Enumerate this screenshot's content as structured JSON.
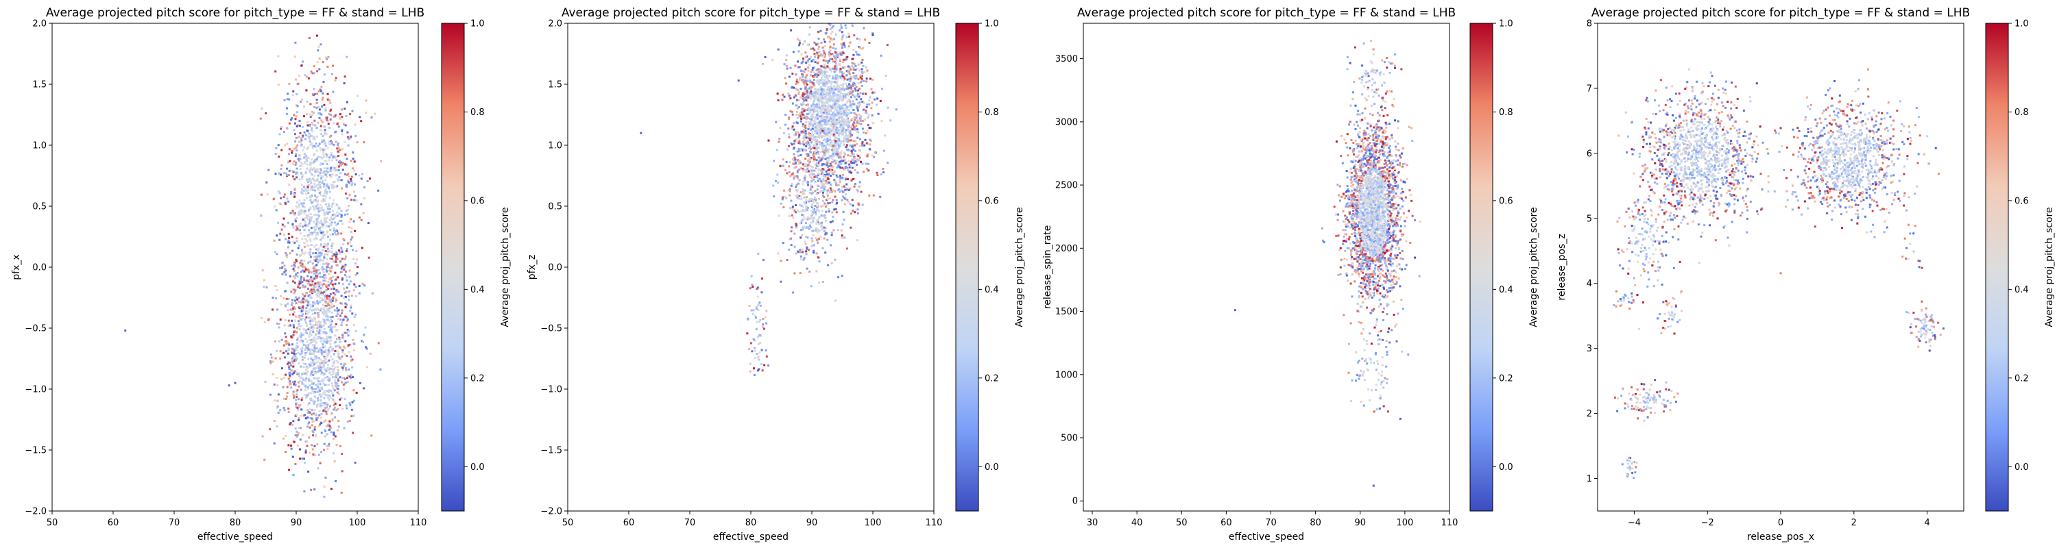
{
  "colormap": {
    "name": "coolwarm",
    "stops": [
      "#3b4cc0",
      "#7b9ff9",
      "#c0d4f5",
      "#dddddd",
      "#f2cbb7",
      "#ee8468",
      "#b40426"
    ]
  },
  "chart_data": [
    {
      "type": "scatter",
      "title": "Average projected pitch score for pitch_type = FF & stand = LHB",
      "xlabel": "effective_speed",
      "ylabel": "pfx_x",
      "xlim": [
        50,
        110
      ],
      "ylim": [
        -2.0,
        2.0
      ],
      "xticks": [
        "50",
        "60",
        "70",
        "80",
        "90",
        "100",
        "110"
      ],
      "yticks": [
        "−2.0",
        "−1.5",
        "−1.0",
        "−0.5",
        "0.0",
        "0.5",
        "1.0",
        "1.5",
        "2.0"
      ],
      "colorbar": {
        "label": "Average proj_pitch_score",
        "clim": [
          -0.1,
          1.0
        ],
        "ticks": [
          "0.0",
          "0.2",
          "0.4",
          "0.6",
          "0.8",
          "1.0"
        ]
      },
      "clusters": [
        {
          "center": [
            93.5,
            0.55
          ],
          "spread": [
            3.2,
            0.55
          ],
          "share": 0.5
        },
        {
          "center": [
            93.5,
            -0.7
          ],
          "spread": [
            3.2,
            0.45
          ],
          "share": 0.5
        }
      ],
      "outliers": [
        [
          62,
          -0.52
        ],
        [
          80,
          -0.95
        ],
        [
          79,
          -0.97
        ]
      ],
      "x_range": [
        84,
        104
      ],
      "y_range": [
        -1.9,
        1.9
      ]
    },
    {
      "type": "scatter",
      "title": "Average projected pitch score for pitch_type = FF & stand = LHB",
      "xlabel": "effective_speed",
      "ylabel": "pfx_z",
      "xlim": [
        50,
        110
      ],
      "ylim": [
        -2.0,
        2.0
      ],
      "xticks": [
        "50",
        "60",
        "70",
        "80",
        "90",
        "100",
        "110"
      ],
      "yticks": [
        "−2.0",
        "−1.5",
        "−1.0",
        "−0.5",
        "0.0",
        "0.5",
        "1.0",
        "1.5",
        "2.0"
      ],
      "colorbar": {
        "label": "Average proj_pitch_score",
        "clim": [
          -0.1,
          1.0
        ],
        "ticks": [
          "0.0",
          "0.2",
          "0.4",
          "0.6",
          "0.8",
          "1.0"
        ]
      },
      "clusters": [
        {
          "center": [
            93,
            1.25
          ],
          "spread": [
            3.2,
            0.35
          ],
          "share": 0.82
        },
        {
          "center": [
            90,
            0.55
          ],
          "spread": [
            2.4,
            0.3
          ],
          "share": 0.15
        },
        {
          "center": [
            81,
            -0.5
          ],
          "spread": [
            0.8,
            0.25
          ],
          "share": 0.03
        }
      ],
      "outliers": [
        [
          62,
          1.1
        ],
        [
          78,
          1.53
        ]
      ],
      "x_range": [
        79,
        104
      ],
      "y_range": [
        -0.9,
        2.0
      ]
    },
    {
      "type": "scatter",
      "title": "Average projected pitch score for pitch_type = FF & stand = LHB",
      "xlabel": "effective_speed",
      "ylabel": "release_spin_rate",
      "xlim": [
        28,
        110
      ],
      "ylim": [
        -80,
        3780
      ],
      "xticks": [
        "30",
        "40",
        "50",
        "60",
        "70",
        "80",
        "90",
        "100",
        "110"
      ],
      "yticks": [
        "0",
        "500",
        "1000",
        "1500",
        "2000",
        "2500",
        "3000",
        "3500"
      ],
      "colorbar": {
        "label": "Average proj_pitch_score",
        "clim": [
          -0.1,
          1.0
        ],
        "ticks": [
          "0.0",
          "0.2",
          "0.4",
          "0.6",
          "0.8",
          "1.0"
        ]
      },
      "clusters": [
        {
          "center": [
            93,
            2280
          ],
          "spread": [
            3.0,
            330
          ],
          "share": 0.92
        },
        {
          "center": [
            93,
            1100
          ],
          "spread": [
            2.5,
            300
          ],
          "share": 0.04
        },
        {
          "center": [
            93,
            3300
          ],
          "spread": [
            2.5,
            220
          ],
          "share": 0.04
        }
      ],
      "outliers": [
        [
          62,
          1510
        ],
        [
          93,
          120
        ],
        [
          99,
          650
        ]
      ],
      "x_range": [
        78,
        104
      ],
      "y_range": [
        700,
        3650
      ]
    },
    {
      "type": "scatter",
      "title": "Average projected pitch score for pitch_type = FF & stand = LHB",
      "xlabel": "release_pos_x",
      "ylabel": "release_pos_z",
      "xlim": [
        -5.0,
        5.0
      ],
      "ylim": [
        0.5,
        8.0
      ],
      "xticks": [
        "−4",
        "−2",
        "0",
        "2",
        "4"
      ],
      "yticks": [
        "1",
        "2",
        "3",
        "4",
        "5",
        "6",
        "7",
        "8"
      ],
      "colorbar": {
        "label": "Average proj_pitch_score",
        "clim": [
          -0.1,
          1.0
        ],
        "ticks": [
          "0.0",
          "0.2",
          "0.4",
          "0.6",
          "0.8",
          "1.0"
        ]
      },
      "clusters": [
        {
          "center": [
            -2.2,
            5.95
          ],
          "spread": [
            0.75,
            0.5
          ],
          "share": 0.45
        },
        {
          "center": [
            1.9,
            5.9
          ],
          "spread": [
            0.75,
            0.45
          ],
          "share": 0.38
        },
        {
          "center": [
            -3.7,
            4.7
          ],
          "spread": [
            0.35,
            0.4
          ],
          "share": 0.06
        },
        {
          "center": [
            -4.2,
            3.75
          ],
          "spread": [
            0.15,
            0.06
          ],
          "share": 0.01
        },
        {
          "center": [
            -3.0,
            3.5
          ],
          "spread": [
            0.15,
            0.15
          ],
          "share": 0.015
        },
        {
          "center": [
            -3.7,
            2.2
          ],
          "spread": [
            0.35,
            0.12
          ],
          "share": 0.04
        },
        {
          "center": [
            -4.1,
            1.2
          ],
          "spread": [
            0.1,
            0.1
          ],
          "share": 0.01
        },
        {
          "center": [
            3.95,
            3.3
          ],
          "spread": [
            0.2,
            0.15
          ],
          "share": 0.03
        },
        {
          "center": [
            3.6,
            4.5
          ],
          "spread": [
            0.15,
            0.15
          ],
          "share": 0.005
        }
      ],
      "outliers": [],
      "x_range": [
        -4.6,
        4.6
      ],
      "y_range": [
        1.0,
        7.3
      ]
    }
  ]
}
